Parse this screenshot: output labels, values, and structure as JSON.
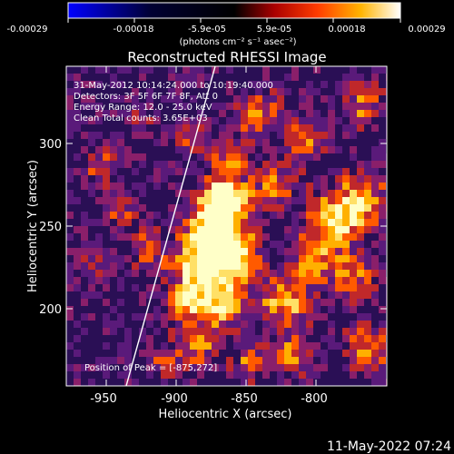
{
  "colorbar": {
    "tick_labels": [
      "-0.00029",
      "-0.00018",
      "-5.9e-05",
      "5.9e-05",
      "0.00018",
      "0.00029"
    ],
    "unit_label": "(photons cm⁻² s⁻¹ asec⁻²)",
    "colors": [
      "#0000ff",
      "#000000",
      "#ff0000",
      "#ffff00",
      "#ffffff"
    ]
  },
  "image": {
    "title": "Reconstructed RHESSI Image",
    "info_lines": [
      "31-May-2012 10:14:24.000 to 10:19:40.000",
      "Detectors: 3F 5F 6F 7F 8F, Att 0",
      "Energy Range: 12.0 - 25.0 keV",
      "Clean     Total counts: 3.65E+03"
    ],
    "peak_label": "Position of Peak = [-875,272]",
    "x_axis_label": "Heliocentric X (arcsec)",
    "y_axis_label": "Heliocentric Y (arcsec)",
    "x_ticks": [
      "-950",
      "-900",
      "-850",
      "-800"
    ],
    "y_ticks": [
      "200",
      "250",
      "300"
    ],
    "palette": [
      "#2a0f55",
      "#5a1a7a",
      "#8a1f6a",
      "#c0282a",
      "#ff5a00",
      "#ffb000",
      "#ffe066",
      "#ffffc8"
    ]
  },
  "footer": {
    "timestamp": "11-May-2022 07:24"
  }
}
